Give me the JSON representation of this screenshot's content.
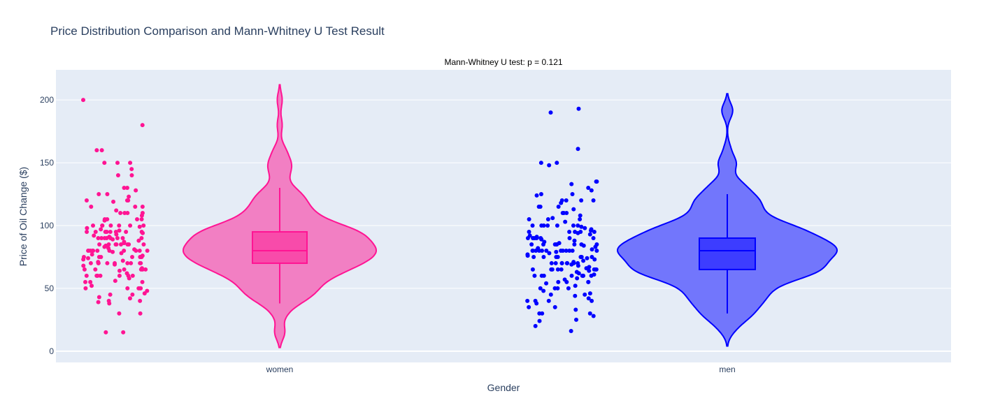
{
  "chart_data": {
    "type": "violin",
    "title": "Price Distribution Comparison and Mann-Whitney U Test Result",
    "annotation": "Mann-Whitney U test: p = 0.121",
    "xlabel": "Gender",
    "ylabel": "Price of Oil Change ($)",
    "categories": [
      "women",
      "men"
    ],
    "ylim": [
      -9,
      224
    ],
    "yticks": [
      0,
      50,
      100,
      150,
      200
    ],
    "ytick_labels": [
      "0",
      "50",
      "100",
      "150",
      "200"
    ],
    "grid": true,
    "show_points": "all",
    "show_box": true,
    "series": [
      {
        "category": "women",
        "color": "#FF1493",
        "fill": "#F27FC3",
        "box_fill": "#F84BAA",
        "box": {
          "q1": 70,
          "median": 80,
          "q3": 95,
          "lower_whisker": 38,
          "upper_whisker": 130
        },
        "values": [
          200,
          180,
          160,
          160,
          150,
          150,
          150,
          145,
          140,
          140,
          130,
          130,
          128,
          125,
          125,
          123,
          120,
          120,
          120,
          119,
          115,
          115,
          115,
          112,
          110,
          110,
          110,
          110,
          108,
          105,
          105,
          105,
          105,
          104,
          100,
          100,
          100,
          100,
          100,
          100,
          100,
          99,
          98,
          97,
          96,
          95,
          95,
          95,
          95,
          95,
          95,
          95,
          95,
          94,
          93,
          92,
          91,
          90,
          90,
          90,
          90,
          90,
          90,
          90,
          90,
          89,
          88,
          87,
          86,
          85,
          85,
          85,
          85,
          85,
          85,
          85,
          85,
          84,
          83,
          82,
          81,
          80,
          80,
          80,
          80,
          80,
          80,
          80,
          80,
          80,
          80,
          80,
          79,
          78,
          77,
          76,
          75,
          75,
          75,
          75,
          75,
          75,
          75,
          75,
          74,
          73,
          72,
          71,
          70,
          70,
          70,
          70,
          70,
          70,
          70,
          70,
          70,
          69,
          68,
          66,
          65,
          65,
          65,
          65,
          65,
          65,
          64,
          62,
          60,
          60,
          60,
          60,
          60,
          60,
          60,
          58,
          56,
          55,
          55,
          55,
          52,
          50,
          50,
          50,
          50,
          50,
          48,
          46,
          45,
          45,
          43,
          42,
          40,
          40,
          39,
          38,
          30,
          30,
          15,
          15
        ]
      },
      {
        "category": "men",
        "color": "#0000FF",
        "fill": "#7276FC",
        "box_fill": "#3D3DFF",
        "box": {
          "q1": 65,
          "median": 80,
          "q3": 90,
          "lower_whisker": 30,
          "upper_whisker": 125
        },
        "values": [
          193,
          190,
          161,
          150,
          150,
          148,
          135,
          135,
          133,
          130,
          128,
          125,
          125,
          124,
          120,
          120,
          120,
          120,
          118,
          115,
          115,
          115,
          113,
          110,
          110,
          110,
          108,
          106,
          105,
          105,
          105,
          103,
          100,
          100,
          100,
          100,
          100,
          100,
          100,
          99,
          98,
          97,
          96,
          95,
          95,
          95,
          95,
          95,
          94,
          93,
          92,
          91,
          90,
          90,
          90,
          90,
          90,
          90,
          90,
          90,
          89,
          88,
          87,
          86,
          85,
          85,
          85,
          85,
          85,
          85,
          85,
          85,
          84,
          83,
          82,
          81,
          80,
          80,
          80,
          80,
          80,
          80,
          80,
          80,
          80,
          80,
          80,
          80,
          79,
          78,
          77,
          76,
          75,
          75,
          75,
          75,
          75,
          75,
          75,
          74,
          73,
          72,
          71,
          70,
          70,
          70,
          70,
          70,
          70,
          70,
          70,
          69,
          68,
          67,
          66,
          65,
          65,
          65,
          65,
          65,
          65,
          65,
          65,
          64,
          63,
          62,
          61,
          60,
          60,
          60,
          60,
          60,
          60,
          60,
          60,
          58,
          57,
          55,
          55,
          55,
          55,
          54,
          52,
          50,
          50,
          50,
          50,
          48,
          46,
          45,
          45,
          44,
          42,
          40,
          40,
          40,
          40,
          38,
          35,
          35,
          33,
          30,
          30,
          30,
          28,
          25,
          24,
          20,
          16
        ]
      }
    ]
  }
}
